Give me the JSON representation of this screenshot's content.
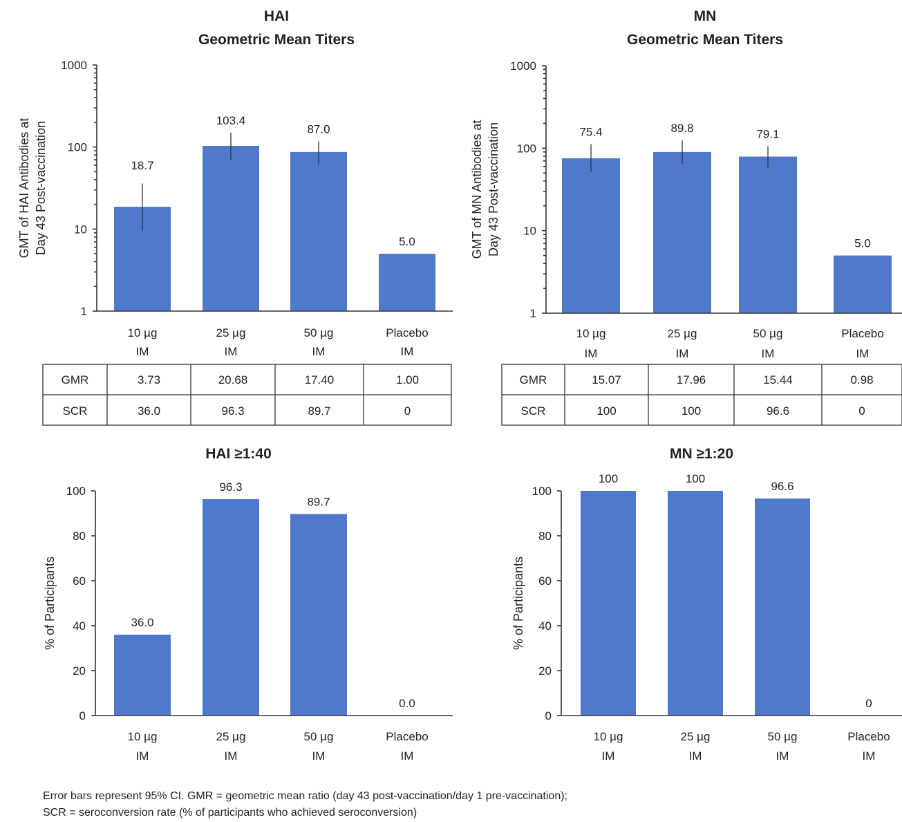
{
  "chart_data": [
    {
      "type": "bar",
      "id": "hai_gmt",
      "title": [
        "HAI",
        "Geometric Mean Titers"
      ],
      "ylabel": [
        "GMT of HAI Antibodies at",
        "Day 43 Post-vaccination"
      ],
      "yscale": "log",
      "ylim": [
        1,
        1000
      ],
      "yticks": [
        "1",
        "10",
        "100",
        "1000"
      ],
      "categories": [
        [
          "10 µg",
          "IM"
        ],
        [
          "25 µg",
          "IM"
        ],
        [
          "50 µg",
          "IM"
        ],
        [
          "Placebo",
          "IM"
        ]
      ],
      "values": [
        18.7,
        103.4,
        87.0,
        5.0
      ],
      "data_labels": [
        "18.7",
        "103.4",
        "87.0",
        "5.0"
      ],
      "error_low": [
        9.5,
        70,
        62,
        null
      ],
      "error_high": [
        36,
        150,
        117,
        null
      ],
      "table": {
        "rows": [
          {
            "label": "GMR",
            "values": [
              "3.73",
              "20.68",
              "17.40",
              "1.00"
            ]
          },
          {
            "label": "SCR",
            "values": [
              "36.0",
              "96.3",
              "89.7",
              "0"
            ]
          }
        ]
      }
    },
    {
      "type": "bar",
      "id": "mn_gmt",
      "title": [
        "MN",
        "Geometric Mean Titers"
      ],
      "ylabel": [
        "GMT of MN Antibodies at",
        "Day 43 Post-vaccination"
      ],
      "yscale": "log",
      "ylim": [
        1,
        1000
      ],
      "yticks": [
        "1",
        "10",
        "100",
        "1000"
      ],
      "categories": [
        [
          "10 µg",
          "IM"
        ],
        [
          "25 µg",
          "IM"
        ],
        [
          "50 µg",
          "IM"
        ],
        [
          "Placebo",
          "IM"
        ]
      ],
      "values": [
        75.4,
        89.8,
        79.1,
        5.0
      ],
      "data_labels": [
        "75.4",
        "89.8",
        "79.1",
        "5.0"
      ],
      "error_low": [
        52,
        64,
        58,
        null
      ],
      "error_high": [
        112,
        124,
        106,
        null
      ],
      "table": {
        "rows": [
          {
            "label": "GMR",
            "values": [
              "15.07",
              "17.96",
              "15.44",
              "0.98"
            ]
          },
          {
            "label": "SCR",
            "values": [
              "100",
              "100",
              "96.6",
              "0"
            ]
          }
        ]
      }
    },
    {
      "type": "bar",
      "id": "hai_pct",
      "title": [
        "HAI ≥1:40"
      ],
      "ylabel": [
        "% of Participants"
      ],
      "ylim": [
        0,
        100
      ],
      "yticks": [
        "0",
        "20",
        "40",
        "60",
        "80",
        "100"
      ],
      "categories": [
        [
          "10 µg",
          "IM"
        ],
        [
          "25 µg",
          "IM"
        ],
        [
          "50 µg",
          "IM"
        ],
        [
          "Placebo",
          "IM"
        ]
      ],
      "values": [
        36.0,
        96.3,
        89.7,
        0.0
      ],
      "data_labels": [
        "36.0",
        "96.3",
        "89.7",
        "0.0"
      ]
    },
    {
      "type": "bar",
      "id": "mn_pct",
      "title": [
        "MN ≥1:20"
      ],
      "ylabel": [
        "% of Participants"
      ],
      "ylim": [
        0,
        100
      ],
      "yticks": [
        "0",
        "20",
        "40",
        "60",
        "80",
        "100"
      ],
      "categories": [
        [
          "10 µg",
          "IM"
        ],
        [
          "25 µg",
          "IM"
        ],
        [
          "50 µg",
          "IM"
        ],
        [
          "Placebo",
          "IM"
        ]
      ],
      "values": [
        100,
        100,
        96.6,
        0
      ],
      "data_labels": [
        "100",
        "100",
        "96.6",
        "0"
      ]
    }
  ],
  "footnote": {
    "line1": "Error bars represent 95% CI. GMR = geometric mean ratio (day 43 post-vaccination/day 1 pre-vaccination);",
    "line2": "SCR = seroconversion rate (% of participants who achieved seroconversion)"
  },
  "colors": {
    "bar": "#4f7acb",
    "axis": "#333333"
  }
}
